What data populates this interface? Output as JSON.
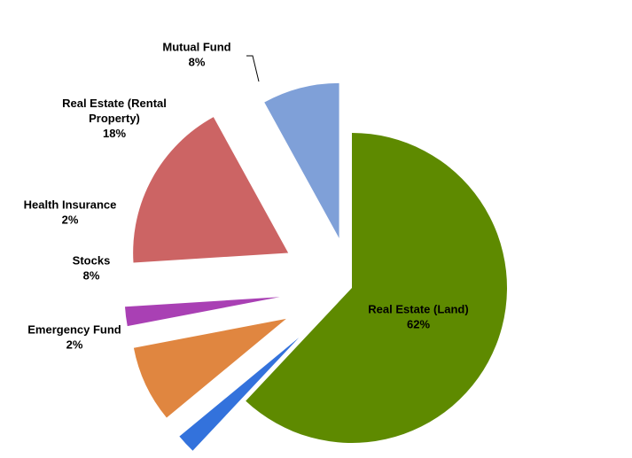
{
  "chart_data": {
    "type": "pie",
    "title": "",
    "legend": "none",
    "exploded": true,
    "slices": [
      {
        "label": "Real Estate (Land)",
        "value_label": "62%",
        "value": 62,
        "color": "#5e8a00"
      },
      {
        "label": "Emergency Fund",
        "value_label": "2%",
        "value": 2,
        "color": "#3372dc"
      },
      {
        "label": "Stocks",
        "value_label": "8%",
        "value": 8,
        "color": "#e08640"
      },
      {
        "label": "Health Insurance",
        "value_label": "2%",
        "value": 2,
        "color": "#a940b4"
      },
      {
        "label": "Real Estate (Rental Property)",
        "value_label": "18%",
        "value": 18,
        "color": "#cc6464"
      },
      {
        "label": "Mutual Fund",
        "value_label": "8%",
        "value": 8,
        "color": "#7fa0d8"
      }
    ]
  }
}
